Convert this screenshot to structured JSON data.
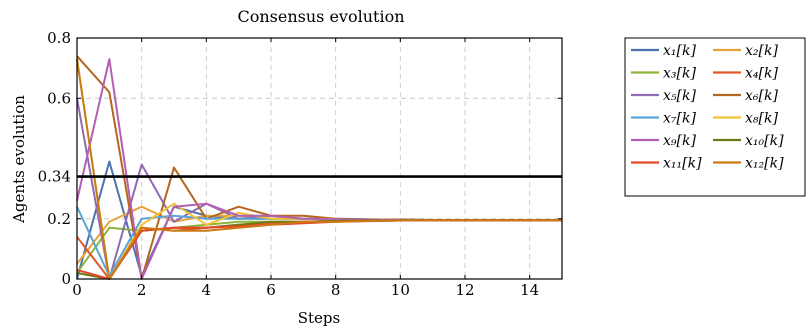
{
  "chart_data": {
    "type": "line",
    "title": "Consensus evolution",
    "xlabel": "Steps",
    "ylabel": "Agents evolution",
    "xlim": [
      0,
      15
    ],
    "ylim": [
      0,
      0.8
    ],
    "xticks": [
      "0",
      "2",
      "4",
      "6",
      "8",
      "10",
      "12",
      "14"
    ],
    "yticks": [
      "0",
      "0.2",
      "0.34",
      "0.6",
      "0.8"
    ],
    "grid": true,
    "legend_position": "outside-right",
    "reference_line": {
      "y": 0.34,
      "color": "#000000"
    },
    "x": [
      0,
      1,
      2,
      3,
      4,
      5,
      6,
      7,
      8,
      9,
      10,
      11,
      12,
      13,
      14,
      15
    ],
    "series": [
      {
        "name": "x₁[k]",
        "color": "#4C72B0",
        "values": [
          0.0,
          0.39,
          0.01,
          0.24,
          0.21,
          0.2,
          0.2,
          0.2,
          0.2,
          0.198,
          0.197,
          0.196,
          0.196,
          0.195,
          0.195,
          0.195
        ]
      },
      {
        "name": "x₂[k]",
        "color": "#E8A33D",
        "values": [
          0.05,
          0.19,
          0.24,
          0.19,
          0.21,
          0.21,
          0.2,
          0.2,
          0.198,
          0.197,
          0.196,
          0.196,
          0.195,
          0.195,
          0.195,
          0.195
        ]
      },
      {
        "name": "x₃[k]",
        "color": "#8DB53A",
        "values": [
          0.02,
          0.17,
          0.16,
          0.17,
          0.18,
          0.19,
          0.19,
          0.19,
          0.193,
          0.194,
          0.195,
          0.195,
          0.195,
          0.195,
          0.195,
          0.195
        ]
      },
      {
        "name": "x₄[k]",
        "color": "#E4572E",
        "values": [
          0.14,
          0.0,
          0.17,
          0.16,
          0.17,
          0.18,
          0.185,
          0.19,
          0.19,
          0.193,
          0.194,
          0.195,
          0.195,
          0.195,
          0.195,
          0.195
        ]
      },
      {
        "name": "x₅[k]",
        "color": "#8F6BB3",
        "values": [
          0.6,
          0.0,
          0.38,
          0.19,
          0.25,
          0.2,
          0.21,
          0.2,
          0.198,
          0.197,
          0.196,
          0.196,
          0.195,
          0.195,
          0.195,
          0.195
        ]
      },
      {
        "name": "x₆[k]",
        "color": "#B5651D",
        "values": [
          0.74,
          0.62,
          0.0,
          0.37,
          0.2,
          0.24,
          0.21,
          0.21,
          0.2,
          0.198,
          0.197,
          0.196,
          0.196,
          0.195,
          0.195,
          0.195
        ]
      },
      {
        "name": "x₇[k]",
        "color": "#5BA4D6",
        "values": [
          0.24,
          0.01,
          0.2,
          0.21,
          0.2,
          0.2,
          0.2,
          0.2,
          0.198,
          0.197,
          0.196,
          0.196,
          0.195,
          0.195,
          0.195,
          0.195
        ]
      },
      {
        "name": "x₈[k]",
        "color": "#F2C230",
        "values": [
          0.73,
          0.0,
          0.18,
          0.25,
          0.18,
          0.22,
          0.2,
          0.2,
          0.198,
          0.197,
          0.196,
          0.196,
          0.195,
          0.195,
          0.195,
          0.195
        ]
      },
      {
        "name": "x₉[k]",
        "color": "#B35FB3",
        "values": [
          0.26,
          0.73,
          0.0,
          0.24,
          0.25,
          0.21,
          0.21,
          0.2,
          0.198,
          0.197,
          0.196,
          0.196,
          0.195,
          0.195,
          0.195,
          0.195
        ]
      },
      {
        "name": "x₁₀[k]",
        "color": "#6E7B12",
        "values": [
          0.02,
          0.0,
          0.16,
          0.17,
          0.17,
          0.18,
          0.19,
          0.19,
          0.193,
          0.194,
          0.195,
          0.195,
          0.195,
          0.195,
          0.195,
          0.195
        ]
      },
      {
        "name": "x₁₁[k]",
        "color": "#E8462B",
        "values": [
          0.03,
          0.0,
          0.16,
          0.17,
          0.17,
          0.175,
          0.18,
          0.185,
          0.19,
          0.192,
          0.194,
          0.195,
          0.195,
          0.195,
          0.195,
          0.195
        ]
      },
      {
        "name": "x₁₂[k]",
        "color": "#C97A12",
        "values": [
          0.73,
          0.0,
          0.17,
          0.16,
          0.16,
          0.17,
          0.18,
          0.19,
          0.19,
          0.193,
          0.194,
          0.195,
          0.195,
          0.195,
          0.195,
          0.195
        ]
      }
    ]
  }
}
